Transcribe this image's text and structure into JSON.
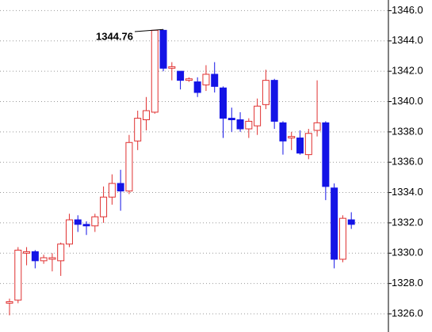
{
  "chart_data": {
    "type": "candlestick",
    "annotation": "1344.76",
    "up_color": "#e03030",
    "down_color": "#1414e6",
    "ylim": [
      1324.8,
      1346.7
    ],
    "yticks": [
      {
        "value": 1326,
        "label": "1326.0"
      },
      {
        "value": 1328,
        "label": "1328.0"
      },
      {
        "value": 1330,
        "label": "1330.0"
      },
      {
        "value": 1332,
        "label": "1332.0"
      },
      {
        "value": 1334,
        "label": "1334.0"
      },
      {
        "value": 1336,
        "label": "1336.0"
      },
      {
        "value": 1338,
        "label": "1338.0"
      },
      {
        "value": 1340,
        "label": "1340.0"
      },
      {
        "value": 1342,
        "label": "1342.0"
      },
      {
        "value": 1344,
        "label": "1344.0"
      },
      {
        "value": 1346,
        "label": "1346.0"
      }
    ],
    "grid": true,
    "open": [
      1326.7,
      1326.9,
      1330.0,
      1330.1,
      1329.5,
      1329.6,
      1329.5,
      1330.6,
      1332.2,
      1331.9,
      1331.8,
      1332.4,
      1333.7,
      1334.6,
      1334.1,
      1337.4,
      1338.8,
      1339.3,
      1344.7,
      1342.2,
      1342.0,
      1341.4,
      1341.3,
      1341.1,
      1341.8,
      1340.9,
      1338.9,
      1338.8,
      1338.2,
      1338.4,
      1339.8,
      1341.4,
      1338.6,
      1337.6,
      1337.6,
      1336.5,
      1338.1,
      1338.6,
      1334.3,
      1329.6,
      1332.2
    ],
    "high": [
      1327.0,
      1330.4,
      1330.4,
      1330.2,
      1329.9,
      1330.0,
      1330.7,
      1332.6,
      1332.5,
      1332.1,
      1332.6,
      1334.4,
      1335.2,
      1335.5,
      1337.8,
      1339.4,
      1340.3,
      1344.7,
      1344.76,
      1342.6,
      1342.0,
      1341.6,
      1341.6,
      1342.4,
      1342.6,
      1341.0,
      1339.6,
      1339.3,
      1338.9,
      1340.2,
      1342.1,
      1341.5,
      1338.7,
      1338.0,
      1338.1,
      1338.2,
      1341.4,
      1338.7,
      1334.6,
      1332.5,
      1332.7
    ],
    "low": [
      1325.9,
      1326.7,
      1329.2,
      1329.0,
      1329.3,
      1328.8,
      1328.5,
      1330.4,
      1331.4,
      1331.2,
      1331.4,
      1332.0,
      1333.2,
      1332.8,
      1333.9,
      1336.8,
      1338.1,
      1339.2,
      1342.0,
      1341.4,
      1340.8,
      1341.3,
      1340.3,
      1340.7,
      1340.6,
      1337.6,
      1338.0,
      1338.0,
      1337.6,
      1337.8,
      1339.5,
      1338.2,
      1336.5,
      1336.8,
      1336.5,
      1336.2,
      1337.7,
      1333.5,
      1329.0,
      1329.4,
      1331.6
    ],
    "close": [
      1326.8,
      1330.2,
      1330.1,
      1329.5,
      1329.7,
      1329.7,
      1330.6,
      1332.2,
      1331.9,
      1331.8,
      1332.4,
      1333.7,
      1334.6,
      1334.1,
      1337.3,
      1338.9,
      1339.4,
      1344.7,
      1342.2,
      1342.3,
      1341.4,
      1341.5,
      1340.6,
      1341.8,
      1341.0,
      1338.9,
      1338.8,
      1338.2,
      1338.7,
      1339.7,
      1341.4,
      1338.7,
      1337.4,
      1337.7,
      1336.6,
      1337.9,
      1338.6,
      1334.4,
      1329.6,
      1332.3,
      1331.9
    ]
  }
}
